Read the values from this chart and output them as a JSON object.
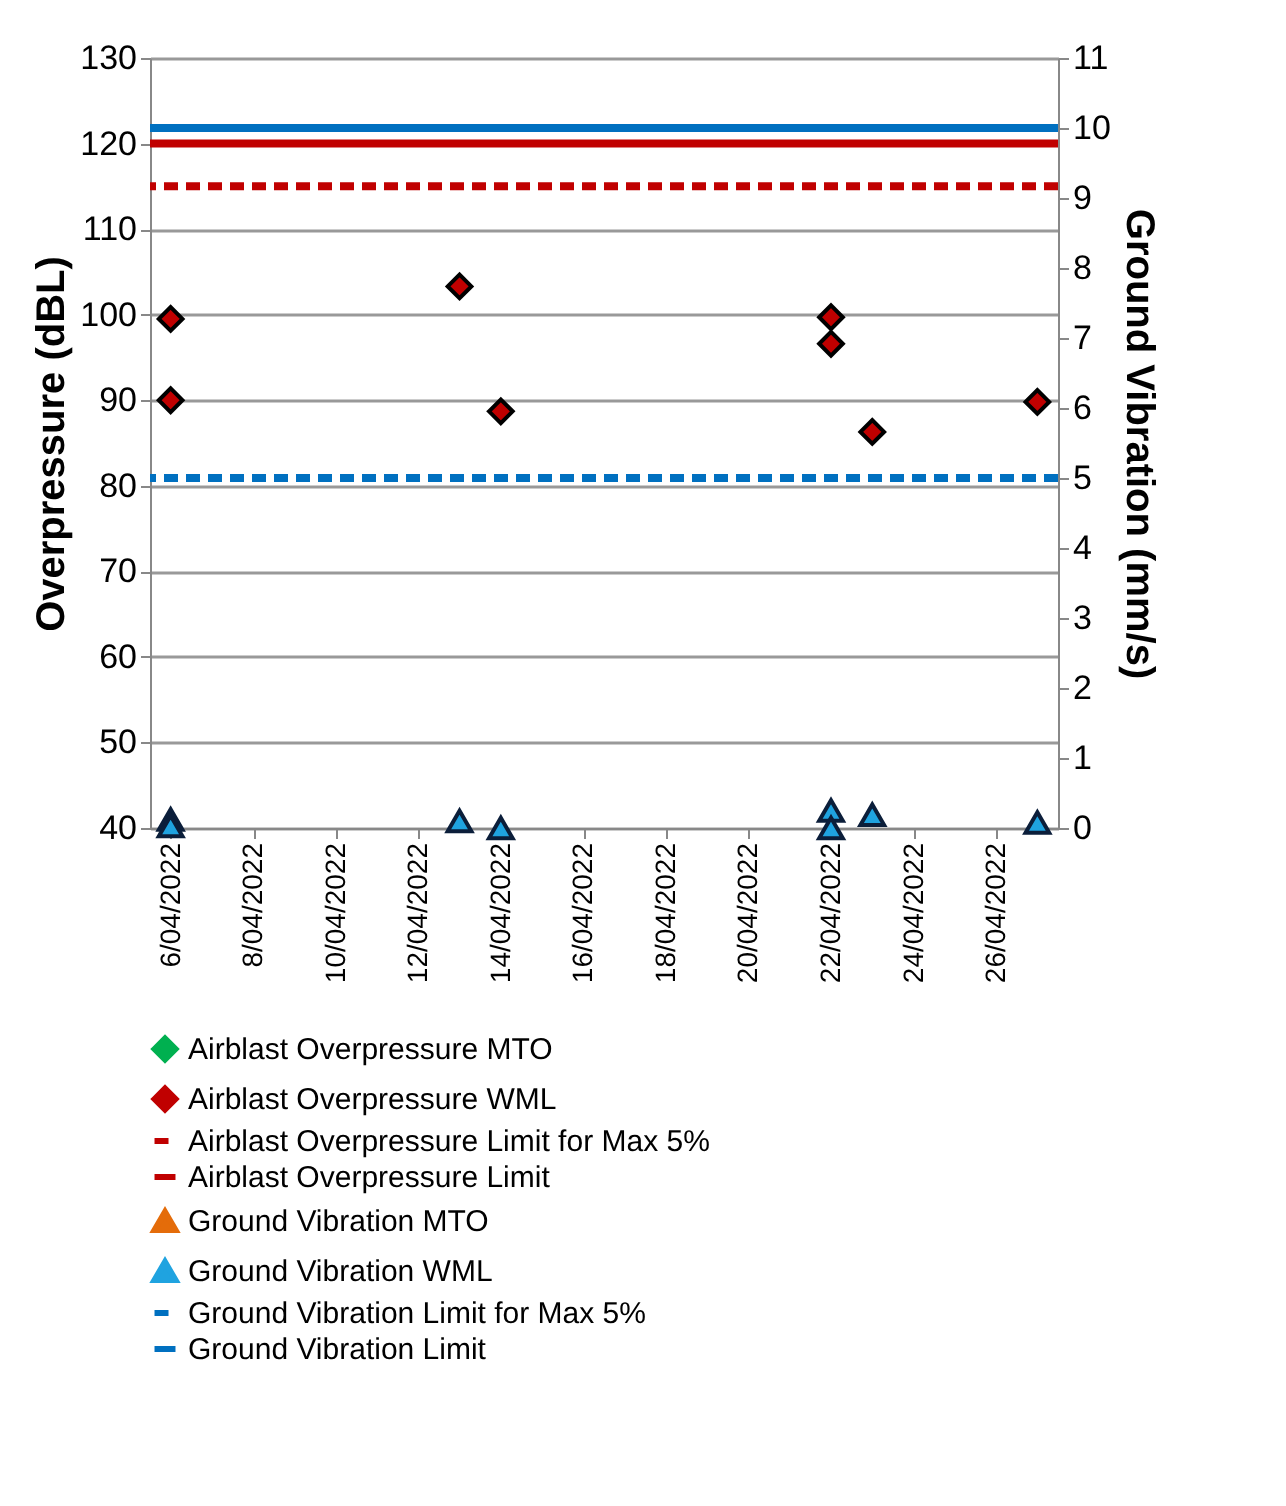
{
  "chart_data": {
    "type": "scatter",
    "ylabel": "Overpressure (dBL)",
    "y2label": "Ground Vibration (mm/s)",
    "x": [
      "2022-04-06",
      "2022-04-06",
      "2022-04-13",
      "2022-04-14",
      "2022-04-22",
      "2022-04-22",
      "2022-04-23",
      "2022-04-27"
    ],
    "xlim": [
      "2022-04-05T12:00",
      "2022-04-27T12:00"
    ],
    "xticks": [
      {
        "value": "2022-04-06",
        "label": "6/04/2022"
      },
      {
        "value": "2022-04-08",
        "label": "8/04/2022"
      },
      {
        "value": "2022-04-10",
        "label": "10/04/2022"
      },
      {
        "value": "2022-04-12",
        "label": "12/04/2022"
      },
      {
        "value": "2022-04-14",
        "label": "14/04/2022"
      },
      {
        "value": "2022-04-16",
        "label": "16/04/2022"
      },
      {
        "value": "2022-04-18",
        "label": "18/04/2022"
      },
      {
        "value": "2022-04-20",
        "label": "20/04/2022"
      },
      {
        "value": "2022-04-22",
        "label": "22/04/2022"
      },
      {
        "value": "2022-04-24",
        "label": "24/04/2022"
      },
      {
        "value": "2022-04-26",
        "label": "26/04/2022"
      }
    ],
    "ylim": [
      40,
      130
    ],
    "yticks": [
      40,
      50,
      60,
      70,
      80,
      90,
      100,
      110,
      120,
      130
    ],
    "y2lim": [
      0,
      11
    ],
    "y2ticks": [
      0,
      1,
      2,
      3,
      4,
      5,
      6,
      7,
      8,
      9,
      10,
      11
    ],
    "series": [
      {
        "name": "Airblast Overpressure MTO",
        "marker": "diamond",
        "color": "#00b050",
        "values": [
          null,
          null,
          null,
          null,
          null,
          null,
          null,
          null
        ]
      },
      {
        "name": "Airblast Overpressure WML",
        "marker": "diamond",
        "color": "#c00000",
        "values": [
          99.5,
          90.0,
          103.3,
          88.7,
          99.7,
          96.6,
          86.3,
          89.8
        ]
      },
      {
        "name": "Ground Vibration MTO",
        "marker": "triangle",
        "axis": "y2",
        "color": "#e46c0a",
        "values": [
          null,
          null,
          null,
          null,
          null,
          null,
          null,
          null
        ]
      },
      {
        "name": "Ground Vibration WML",
        "marker": "triangle",
        "axis": "y2",
        "color": "#1fa3e0",
        "values": [
          0.12,
          0.03,
          0.1,
          0.0,
          0.25,
          0.0,
          0.19,
          0.08
        ]
      }
    ],
    "ref_lines": [
      {
        "axis": "y",
        "value": 115,
        "label": "Airblast Overpressure Limit for Max 5%",
        "color": "#c00000",
        "line_style": "dashed"
      },
      {
        "axis": "y",
        "value": 120,
        "label": "Airblast Overpressure Limit",
        "color": "#c00000",
        "line_style": "solid"
      },
      {
        "axis": "y2",
        "value": 5,
        "label": "Ground Vibration Limit for Max 5%",
        "color": "#0070c0",
        "line_style": "dashed"
      },
      {
        "axis": "y2",
        "value": 10,
        "label": "Ground Vibration Limit",
        "color": "#0070c0",
        "line_style": "solid"
      }
    ],
    "grid": "y",
    "legend": "bottom"
  }
}
